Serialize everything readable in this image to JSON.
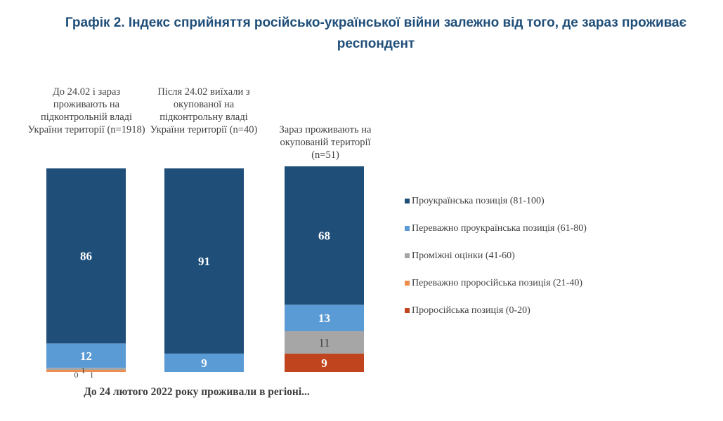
{
  "chart_data": {
    "type": "bar",
    "stacked": true,
    "title": "Графік 2. Індекс сприйняття російсько-української війни залежно від того, де зараз проживає респондент",
    "xlabel": "До 24 лютого 2022 року проживали в регіоні...",
    "ylabel": "",
    "ylim": [
      0,
      100
    ],
    "categories": [
      "До 24.02 і зараз проживають на підконтрольній владі України території (n=1918)",
      "Після 24.02 виїхали з окупованої на підконтрольну владі України території (n=40)",
      "Зараз проживають на окупованій території (n=51)"
    ],
    "series": [
      {
        "name": "Проросійська позиція (0-20)",
        "color": "#c0441e",
        "values": [
          0,
          0,
          9
        ],
        "labels": [
          "0",
          "",
          "9"
        ]
      },
      {
        "name": "Переважно проросійська позиція (21-40)",
        "color": "#ef8c4c",
        "values": [
          1,
          0,
          0
        ],
        "labels": [
          "1",
          "",
          ""
        ]
      },
      {
        "name": "Проміжні оцінки (41-60)",
        "color": "#a6a6a6",
        "values": [
          1,
          0,
          11
        ],
        "labels": [
          "1",
          "",
          "11"
        ]
      },
      {
        "name": "Переважно проукраїнська позиція (61-80)",
        "color": "#5b9bd5",
        "values": [
          12,
          9,
          13
        ],
        "labels": [
          "12",
          "9",
          "13"
        ]
      },
      {
        "name": "Проукраїнська позиція (81-100)",
        "color": "#1f4e79",
        "values": [
          86,
          91,
          68
        ],
        "labels": [
          "86",
          "91",
          "68"
        ]
      }
    ],
    "legend": {
      "position": "right",
      "order": [
        "Проукраїнська позиція (81-100)",
        "Переважно проукраїнська позиція (61-80)",
        "Проміжні оцінки (41-60)",
        "Переважно проросійська позиція (21-40)",
        "Проросійська позиція (0-20)"
      ]
    }
  }
}
